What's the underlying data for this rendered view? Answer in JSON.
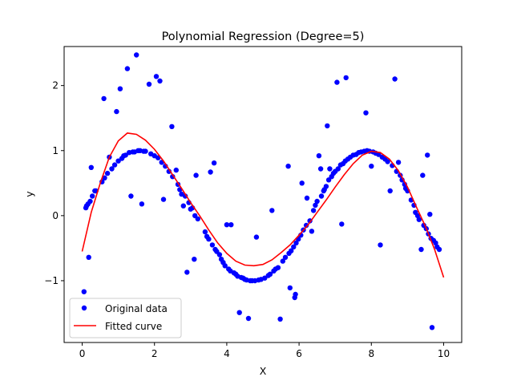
{
  "chart_data": {
    "type": "scatter",
    "title": "Polynomial Regression (Degree=5)",
    "xlabel": "X",
    "ylabel": "y",
    "xlim": [
      -0.5,
      10.5
    ],
    "ylim": [
      -1.95,
      2.6
    ],
    "xticks": [
      0,
      2,
      4,
      6,
      8,
      10
    ],
    "xtick_labels": [
      "0",
      "2",
      "4",
      "6",
      "8",
      "10"
    ],
    "yticks": [
      -1,
      0,
      1,
      2
    ],
    "ytick_labels": [
      "−1",
      "0",
      "1",
      "2"
    ],
    "grid": false,
    "legend_position": "lower-left",
    "series": [
      {
        "name": "Original data",
        "kind": "scatter",
        "color": "#0000ff",
        "points": [
          [
            0.05,
            -1.17
          ],
          [
            0.1,
            0.12
          ],
          [
            0.12,
            0.15
          ],
          [
            0.16,
            0.18
          ],
          [
            0.18,
            -0.64
          ],
          [
            0.22,
            0.22
          ],
          [
            0.25,
            0.74
          ],
          [
            0.28,
            0.3
          ],
          [
            0.35,
            0.38
          ],
          [
            0.38,
            0.38
          ],
          [
            0.55,
            0.52
          ],
          [
            0.6,
            1.8
          ],
          [
            0.62,
            0.58
          ],
          [
            0.7,
            0.65
          ],
          [
            0.75,
            0.9
          ],
          [
            0.82,
            0.72
          ],
          [
            0.9,
            0.78
          ],
          [
            0.95,
            1.6
          ],
          [
            1.0,
            0.84
          ],
          [
            1.05,
            1.95
          ],
          [
            1.1,
            0.88
          ],
          [
            1.15,
            0.92
          ],
          [
            1.2,
            0.93
          ],
          [
            1.25,
            2.26
          ],
          [
            1.3,
            0.97
          ],
          [
            1.35,
            0.3
          ],
          [
            1.4,
            0.98
          ],
          [
            1.45,
            0.98
          ],
          [
            1.5,
            2.47
          ],
          [
            1.55,
            1.0
          ],
          [
            1.6,
            1.0
          ],
          [
            1.65,
            0.18
          ],
          [
            1.7,
            0.99
          ],
          [
            1.75,
            0.99
          ],
          [
            1.85,
            2.02
          ],
          [
            1.9,
            0.95
          ],
          [
            2.0,
            0.92
          ],
          [
            2.05,
            2.14
          ],
          [
            2.1,
            0.89
          ],
          [
            2.15,
            2.07
          ],
          [
            2.2,
            0.82
          ],
          [
            2.25,
            0.25
          ],
          [
            2.3,
            0.76
          ],
          [
            2.4,
            0.68
          ],
          [
            2.48,
            1.37
          ],
          [
            2.5,
            0.6
          ],
          [
            2.6,
            0.7
          ],
          [
            2.65,
            0.48
          ],
          [
            2.7,
            0.4
          ],
          [
            2.75,
            0.33
          ],
          [
            2.8,
            0.15
          ],
          [
            2.85,
            0.3
          ],
          [
            2.9,
            -0.87
          ],
          [
            2.95,
            0.2
          ],
          [
            3.0,
            0.1
          ],
          [
            3.05,
            0.12
          ],
          [
            3.1,
            -0.67
          ],
          [
            3.12,
            0.0
          ],
          [
            3.15,
            0.62
          ],
          [
            3.2,
            -0.05
          ],
          [
            3.4,
            -0.25
          ],
          [
            3.45,
            -0.32
          ],
          [
            3.5,
            -0.36
          ],
          [
            3.55,
            0.67
          ],
          [
            3.6,
            -0.45
          ],
          [
            3.65,
            0.81
          ],
          [
            3.68,
            -0.52
          ],
          [
            3.72,
            -0.55
          ],
          [
            3.8,
            -0.6
          ],
          [
            3.85,
            -0.67
          ],
          [
            3.9,
            -0.72
          ],
          [
            3.95,
            -0.77
          ],
          [
            4.0,
            -0.14
          ],
          [
            4.05,
            -0.82
          ],
          [
            4.1,
            -0.85
          ],
          [
            4.12,
            -0.14
          ],
          [
            4.2,
            -0.88
          ],
          [
            4.25,
            -0.9
          ],
          [
            4.3,
            -0.93
          ],
          [
            4.35,
            -1.49
          ],
          [
            4.4,
            -0.95
          ],
          [
            4.45,
            -0.96
          ],
          [
            4.5,
            -0.98
          ],
          [
            4.55,
            -0.99
          ],
          [
            4.6,
            -1.58
          ],
          [
            4.65,
            -1.0
          ],
          [
            4.7,
            -1.0
          ],
          [
            4.78,
            -1.0
          ],
          [
            4.82,
            -0.33
          ],
          [
            4.88,
            -0.99
          ],
          [
            4.95,
            -0.98
          ],
          [
            5.05,
            -0.96
          ],
          [
            5.15,
            -0.92
          ],
          [
            5.2,
            -0.9
          ],
          [
            5.25,
            0.08
          ],
          [
            5.3,
            -0.85
          ],
          [
            5.35,
            -0.82
          ],
          [
            5.42,
            -0.8
          ],
          [
            5.48,
            -1.59
          ],
          [
            5.55,
            -0.7
          ],
          [
            5.62,
            -0.64
          ],
          [
            5.7,
            0.76
          ],
          [
            5.72,
            -0.58
          ],
          [
            5.75,
            -1.11
          ],
          [
            5.78,
            -0.54
          ],
          [
            5.85,
            -0.48
          ],
          [
            5.88,
            -1.26
          ],
          [
            5.9,
            -1.21
          ],
          [
            5.92,
            -0.42
          ],
          [
            5.98,
            -0.36
          ],
          [
            6.05,
            -0.3
          ],
          [
            6.08,
            0.5
          ],
          [
            6.12,
            -0.22
          ],
          [
            6.2,
            -0.15
          ],
          [
            6.22,
            0.27
          ],
          [
            6.3,
            -0.08
          ],
          [
            6.35,
            -0.24
          ],
          [
            6.4,
            0.08
          ],
          [
            6.45,
            0.16
          ],
          [
            6.5,
            0.22
          ],
          [
            6.55,
            0.92
          ],
          [
            6.6,
            0.72
          ],
          [
            6.62,
            0.3
          ],
          [
            6.68,
            0.38
          ],
          [
            6.7,
            0.4
          ],
          [
            6.75,
            0.45
          ],
          [
            6.78,
            1.38
          ],
          [
            6.82,
            0.55
          ],
          [
            6.85,
            0.72
          ],
          [
            6.9,
            0.6
          ],
          [
            6.95,
            0.65
          ],
          [
            7.0,
            0.68
          ],
          [
            7.05,
            2.05
          ],
          [
            7.08,
            0.72
          ],
          [
            7.15,
            0.78
          ],
          [
            7.18,
            -0.13
          ],
          [
            7.22,
            0.8
          ],
          [
            7.28,
            0.84
          ],
          [
            7.3,
            2.12
          ],
          [
            7.35,
            0.87
          ],
          [
            7.42,
            0.9
          ],
          [
            7.5,
            0.93
          ],
          [
            7.58,
            0.94
          ],
          [
            7.65,
            0.97
          ],
          [
            7.72,
            0.98
          ],
          [
            7.8,
            0.99
          ],
          [
            7.85,
            1.58
          ],
          [
            7.88,
            1.0
          ],
          [
            7.95,
            0.99
          ],
          [
            8.0,
            0.76
          ],
          [
            8.05,
            0.98
          ],
          [
            8.12,
            0.96
          ],
          [
            8.2,
            0.94
          ],
          [
            8.25,
            -0.45
          ],
          [
            8.3,
            0.9
          ],
          [
            8.38,
            0.87
          ],
          [
            8.45,
            0.83
          ],
          [
            8.52,
            0.38
          ],
          [
            8.58,
            0.77
          ],
          [
            8.65,
            2.1
          ],
          [
            8.7,
            0.68
          ],
          [
            8.75,
            0.82
          ],
          [
            8.8,
            0.62
          ],
          [
            8.85,
            0.55
          ],
          [
            8.92,
            0.48
          ],
          [
            8.95,
            0.42
          ],
          [
            9.0,
            0.38
          ],
          [
            9.1,
            0.24
          ],
          [
            9.18,
            0.16
          ],
          [
            9.22,
            0.05
          ],
          [
            9.28,
            0.0
          ],
          [
            9.32,
            -0.06
          ],
          [
            9.38,
            -0.52
          ],
          [
            9.42,
            0.62
          ],
          [
            9.45,
            -0.15
          ],
          [
            9.52,
            -0.2
          ],
          [
            9.55,
            0.93
          ],
          [
            9.58,
            -0.28
          ],
          [
            9.62,
            0.02
          ],
          [
            9.65,
            -0.35
          ],
          [
            9.68,
            -1.72
          ],
          [
            9.72,
            -0.38
          ],
          [
            9.78,
            -0.42
          ],
          [
            9.82,
            -0.48
          ],
          [
            9.88,
            -0.52
          ]
        ]
      },
      {
        "name": "Fitted curve",
        "kind": "line",
        "color": "#ff0000",
        "points": [
          [
            0.0,
            -0.55
          ],
          [
            0.25,
            0.05
          ],
          [
            0.5,
            0.5
          ],
          [
            0.75,
            0.9
          ],
          [
            1.0,
            1.15
          ],
          [
            1.25,
            1.27
          ],
          [
            1.5,
            1.25
          ],
          [
            1.75,
            1.16
          ],
          [
            2.0,
            1.02
          ],
          [
            2.25,
            0.84
          ],
          [
            2.5,
            0.63
          ],
          [
            2.75,
            0.42
          ],
          [
            3.0,
            0.2
          ],
          [
            3.25,
            0.0
          ],
          [
            3.5,
            -0.22
          ],
          [
            3.75,
            -0.42
          ],
          [
            4.0,
            -0.58
          ],
          [
            4.25,
            -0.7
          ],
          [
            4.5,
            -0.76
          ],
          [
            4.75,
            -0.77
          ],
          [
            5.0,
            -0.75
          ],
          [
            5.25,
            -0.68
          ],
          [
            5.5,
            -0.57
          ],
          [
            5.75,
            -0.45
          ],
          [
            6.0,
            -0.3
          ],
          [
            6.25,
            -0.14
          ],
          [
            6.5,
            0.05
          ],
          [
            6.75,
            0.24
          ],
          [
            7.0,
            0.44
          ],
          [
            7.25,
            0.63
          ],
          [
            7.5,
            0.8
          ],
          [
            7.75,
            0.93
          ],
          [
            8.0,
            0.99
          ],
          [
            8.25,
            0.97
          ],
          [
            8.5,
            0.87
          ],
          [
            8.75,
            0.69
          ],
          [
            9.0,
            0.44
          ],
          [
            9.25,
            0.13
          ],
          [
            9.5,
            -0.17
          ],
          [
            9.75,
            -0.52
          ],
          [
            10.0,
            -0.95
          ]
        ]
      }
    ]
  }
}
